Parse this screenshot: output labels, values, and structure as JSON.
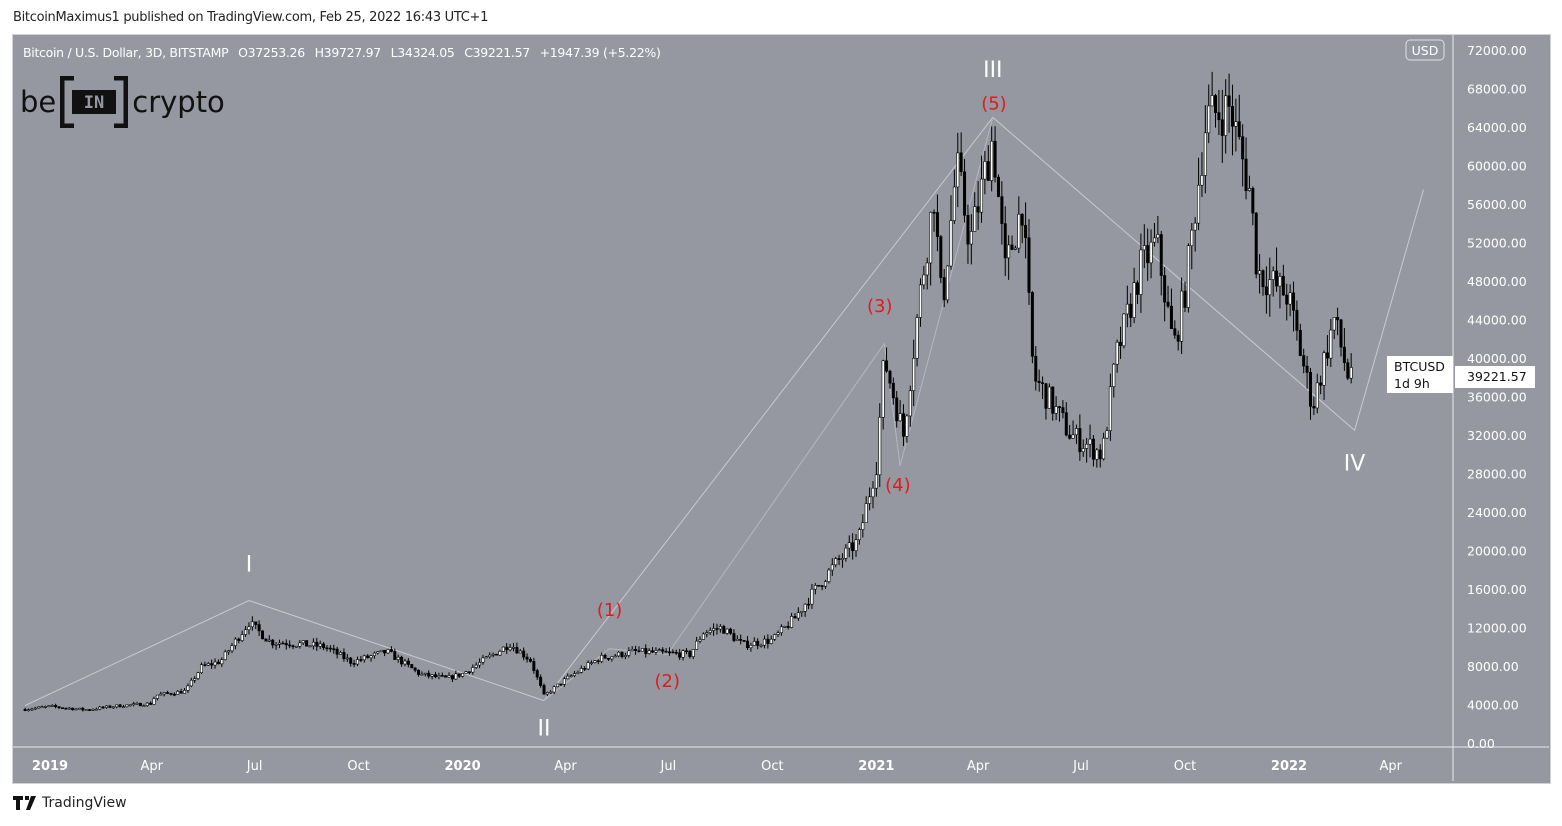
{
  "publisher_line": "BitcoinMaximus1 published on TradingView.com, Feb 25, 2022 16:43 UTC+1",
  "legend": {
    "symbol": "Bitcoin / U.S. Dollar, 3D, BITSTAMP",
    "open": "O37253.26",
    "high": "H39727.97",
    "low": "L34324.05",
    "close": "C39221.57",
    "change": "+1947.39 (+5.22%)"
  },
  "logo": {
    "left": "be",
    "mid": "IN",
    "right": "crypto"
  },
  "footer": {
    "brand": "TradingView",
    "icon": "tradingview-logo-icon"
  },
  "price_label": {
    "symbol": "BTCUSD",
    "price": "39221.57",
    "countdown": "1d 9h"
  },
  "currency_button": "USD",
  "colors": {
    "background": "#9598a1",
    "candle": "#000000",
    "up_body": "#ffffff",
    "wave_line": "#c8cad0",
    "wave_major": "#ffffff",
    "wave_minor": "#e01b1b"
  },
  "chart_data": {
    "type": "candlestick",
    "title": "Bitcoin / U.S. Dollar, 3D, BITSTAMP",
    "ylim": [
      0,
      72000
    ],
    "y_ticks": [
      "72000.00",
      "68000.00",
      "64000.00",
      "60000.00",
      "56000.00",
      "52000.00",
      "48000.00",
      "44000.00",
      "40000.00",
      "36000.00",
      "32000.00",
      "28000.00",
      "24000.00",
      "20000.00",
      "16000.00",
      "12000.00",
      "8000.00",
      "4000.00",
      "0.00"
    ],
    "x_ticks": [
      {
        "label": "2019",
        "date": "2019-01-01",
        "bold": true
      },
      {
        "label": "Apr",
        "date": "2019-04-01"
      },
      {
        "label": "Jul",
        "date": "2019-07-01"
      },
      {
        "label": "Oct",
        "date": "2019-10-01"
      },
      {
        "label": "2020",
        "date": "2020-01-01",
        "bold": true
      },
      {
        "label": "Apr",
        "date": "2020-04-01"
      },
      {
        "label": "Jul",
        "date": "2020-07-01"
      },
      {
        "label": "Oct",
        "date": "2020-10-01"
      },
      {
        "label": "2021",
        "date": "2021-01-01",
        "bold": true
      },
      {
        "label": "Apr",
        "date": "2021-04-01"
      },
      {
        "label": "Jul",
        "date": "2021-07-01"
      },
      {
        "label": "Oct",
        "date": "2021-10-01"
      },
      {
        "label": "2022",
        "date": "2022-01-01",
        "bold": true
      },
      {
        "label": "Apr",
        "date": "2022-04-01"
      }
    ],
    "approx_closes": [
      [
        "2018-12-10",
        3500
      ],
      [
        "2019-01-01",
        3800
      ],
      [
        "2019-02-01",
        3450
      ],
      [
        "2019-03-01",
        3850
      ],
      [
        "2019-04-01",
        4100
      ],
      [
        "2019-04-04",
        4950
      ],
      [
        "2019-05-01",
        5400
      ],
      [
        "2019-05-15",
        7900
      ],
      [
        "2019-06-01",
        8500
      ],
      [
        "2019-06-26",
        12500
      ],
      [
        "2019-07-15",
        10500
      ],
      [
        "2019-08-01",
        10400
      ],
      [
        "2019-09-01",
        10000
      ],
      [
        "2019-09-25",
        8400
      ],
      [
        "2019-10-26",
        9500
      ],
      [
        "2019-11-25",
        7100
      ],
      [
        "2019-12-18",
        6700
      ],
      [
        "2020-01-01",
        7200
      ],
      [
        "2020-02-12",
        10300
      ],
      [
        "2020-03-01",
        8600
      ],
      [
        "2020-03-13",
        4900
      ],
      [
        "2020-04-01",
        6600
      ],
      [
        "2020-05-01",
        8800
      ],
      [
        "2020-06-01",
        9500
      ],
      [
        "2020-07-20",
        9200
      ],
      [
        "2020-08-01",
        11500
      ],
      [
        "2020-08-17",
        12000
      ],
      [
        "2020-09-05",
        10200
      ],
      [
        "2020-10-01",
        10700
      ],
      [
        "2020-10-21",
        13000
      ],
      [
        "2020-11-05",
        15500
      ],
      [
        "2020-11-25",
        18500
      ],
      [
        "2020-12-16",
        21000
      ],
      [
        "2021-01-01",
        29000
      ],
      [
        "2021-01-08",
        40000
      ],
      [
        "2021-01-25",
        32000
      ],
      [
        "2021-02-08",
        46000
      ],
      [
        "2021-02-21",
        57000
      ],
      [
        "2021-02-28",
        45000
      ],
      [
        "2021-03-13",
        60000
      ],
      [
        "2021-03-25",
        52000
      ],
      [
        "2021-04-14",
        63000
      ],
      [
        "2021-04-25",
        49000
      ],
      [
        "2021-05-10",
        56000
      ],
      [
        "2021-05-20",
        38000
      ],
      [
        "2021-06-01",
        36000
      ],
      [
        "2021-06-22",
        32000
      ],
      [
        "2021-07-20",
        30000
      ],
      [
        "2021-08-01",
        40000
      ],
      [
        "2021-08-23",
        49500
      ],
      [
        "2021-09-06",
        52000
      ],
      [
        "2021-09-21",
        41000
      ],
      [
        "2021-10-01",
        47000
      ],
      [
        "2021-10-20",
        65000
      ],
      [
        "2021-11-10",
        66000
      ],
      [
        "2021-11-28",
        57000
      ],
      [
        "2021-12-04",
        49000
      ],
      [
        "2021-12-31",
        46500
      ],
      [
        "2022-01-22",
        35000
      ],
      [
        "2022-02-10",
        44000
      ],
      [
        "2022-02-24",
        37300
      ],
      [
        "2022-02-25",
        39221.57
      ]
    ],
    "wave_path_major": [
      [
        "2018-12-10",
        3900
      ],
      [
        "2019-06-26",
        14800
      ],
      [
        "2020-03-13",
        4400
      ],
      [
        "2021-04-14",
        65000
      ],
      [
        "2022-02-28",
        32500
      ],
      [
        "2022-04-30",
        57500
      ]
    ],
    "wave_path_minor": [
      [
        "2020-03-13",
        4400
      ],
      [
        "2020-05-10",
        9800
      ],
      [
        "2020-06-30",
        9200
      ],
      [
        "2021-01-08",
        41500
      ],
      [
        "2021-01-22",
        28800
      ],
      [
        "2021-04-14",
        65000
      ]
    ],
    "wave_labels": [
      {
        "text": "I",
        "date": "2019-06-26",
        "price": 17800,
        "kind": "major"
      },
      {
        "text": "II",
        "date": "2020-03-13",
        "price": 800,
        "kind": "major"
      },
      {
        "text": "III",
        "date": "2021-04-14",
        "price": 69200,
        "kind": "major"
      },
      {
        "text": "IV",
        "date": "2022-02-28",
        "price": 28300,
        "kind": "major"
      },
      {
        "text": "(1)",
        "date": "2020-05-10",
        "price": 13200,
        "kind": "minor"
      },
      {
        "text": "(2)",
        "date": "2020-06-30",
        "price": 5800,
        "kind": "minor"
      },
      {
        "text": "(3)",
        "date": "2021-01-04",
        "price": 44800,
        "kind": "minor"
      },
      {
        "text": "(4)",
        "date": "2021-01-20",
        "price": 26200,
        "kind": "minor"
      },
      {
        "text": "(5)",
        "date": "2021-04-15",
        "price": 65800,
        "kind": "minor"
      }
    ]
  }
}
